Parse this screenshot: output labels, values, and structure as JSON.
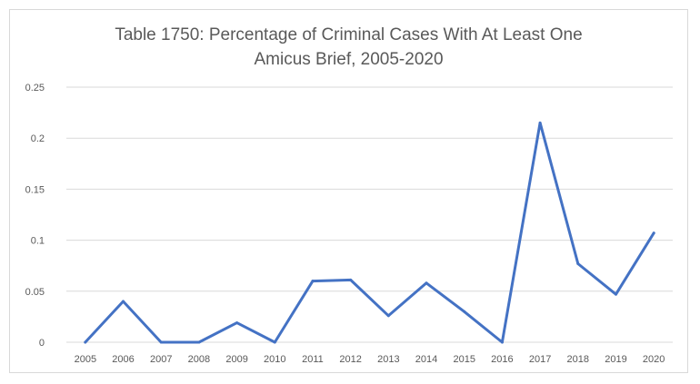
{
  "chart_data": {
    "type": "line",
    "title_lines": [
      "Table 1750: Percentage of Criminal Cases With At Least One",
      "Amicus Brief, 2005-2020"
    ],
    "xlabel": "",
    "ylabel": "",
    "x": [
      "2005",
      "2006",
      "2007",
      "2008",
      "2009",
      "2010",
      "2011",
      "2012",
      "2013",
      "2014",
      "2015",
      "2016",
      "2017",
      "2018",
      "2019",
      "2020"
    ],
    "series": [
      {
        "values": [
          0,
          0.04,
          0,
          0,
          0.019,
          0,
          0.06,
          0.061,
          0.026,
          0.058,
          0.03,
          0,
          0.215,
          0.077,
          0.047,
          0.107
        ],
        "color": "#4472c4"
      }
    ],
    "ylim": [
      0,
      0.25
    ],
    "yticks": [
      {
        "value": 0,
        "label": "0"
      },
      {
        "value": 0.05,
        "label": "0.05"
      },
      {
        "value": 0.1,
        "label": "0.1"
      },
      {
        "value": 0.15,
        "label": "0.15"
      },
      {
        "value": 0.2,
        "label": "0.2"
      },
      {
        "value": 0.25,
        "label": "0.25"
      }
    ],
    "grid": true,
    "legend": "none",
    "gridline_color": "#d9d9d9",
    "text_color": "#595959"
  }
}
